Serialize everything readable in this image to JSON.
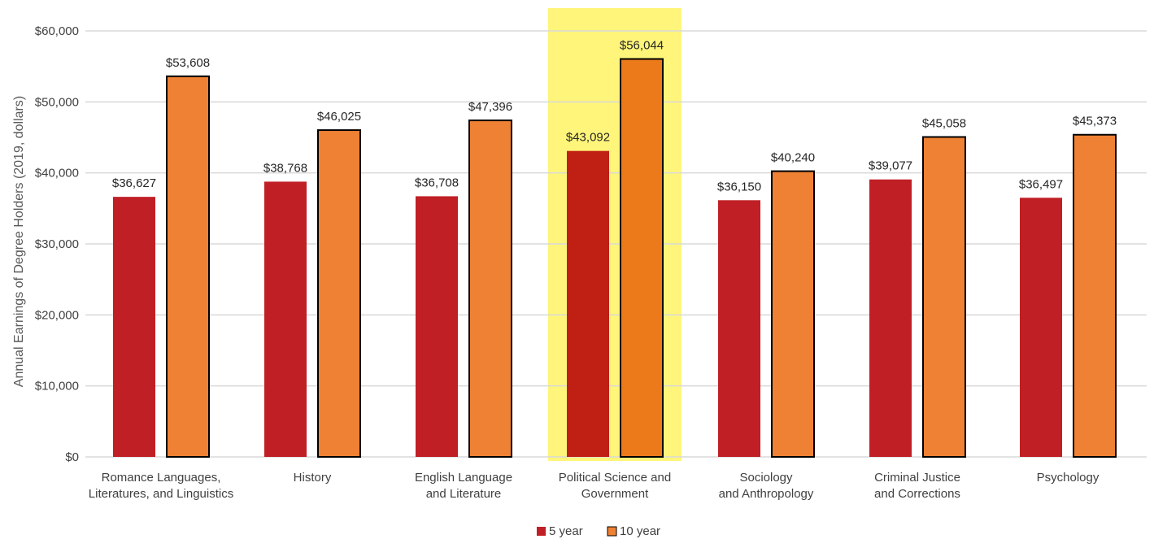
{
  "chart_data": {
    "type": "bar",
    "categories": [
      [
        "Romance Languages,",
        "Literatures, and Linguistics"
      ],
      [
        "History"
      ],
      [
        "English Language",
        "and Literature"
      ],
      [
        "Political Science and",
        "Government"
      ],
      [
        "Sociology",
        "and Anthropology"
      ],
      [
        "Criminal Justice",
        "and Corrections"
      ],
      [
        "Psychology"
      ]
    ],
    "series": [
      {
        "name": "5 year",
        "values": [
          36627,
          38768,
          36708,
          43092,
          36150,
          39077,
          36497
        ],
        "labels": [
          "$36,627",
          "$38,768",
          "$36,708",
          "$43,092",
          "$36,150",
          "$39,077",
          "$36,497"
        ]
      },
      {
        "name": "10 year",
        "values": [
          53608,
          46025,
          47396,
          56044,
          40240,
          45058,
          45373
        ],
        "labels": [
          "$53,608",
          "$46,025",
          "$47,396",
          "$56,044",
          "$40,240",
          "$45,058",
          "$45,373"
        ]
      }
    ],
    "ylabel": "Annual Earnings of Degree Holders (2019, dollars)",
    "ylim": [
      0,
      60000
    ],
    "yticks": [
      0,
      10000,
      20000,
      30000,
      40000,
      50000,
      60000
    ],
    "ytick_labels": [
      "$0",
      "$10,000",
      "$20,000",
      "$30,000",
      "$40,000",
      "$50,000",
      "$60,000"
    ],
    "highlight_index": 3,
    "grid": true,
    "legend": "bottom-center"
  },
  "colors": {
    "series_5yr": "#c01f25",
    "series_10yr": "#ee8133",
    "highlight_5yr": "#c01f14",
    "highlight_10yr": "#ec7a1a",
    "highlight_bg": "#fff57a",
    "grid": "#d9d9d9",
    "bar_outline_10yr": "#000000"
  }
}
